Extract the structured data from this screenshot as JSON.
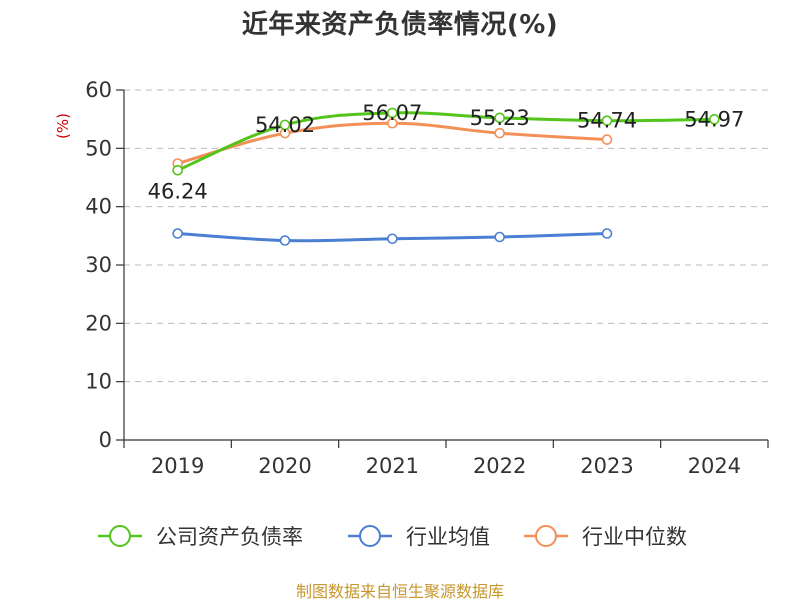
{
  "title": "近年来资产负债率情况(%)",
  "footer": "制图数据来自恒生聚源数据库",
  "chart_data": {
    "type": "line",
    "title": "近年来资产负债率情况(%)",
    "ylabel": "(%)",
    "xlabel": "",
    "categories": [
      "2019",
      "2020",
      "2021",
      "2022",
      "2023",
      "2024"
    ],
    "ylim": [
      0,
      60
    ],
    "yticks": [
      0,
      10,
      20,
      30,
      40,
      50,
      60
    ],
    "grid": true,
    "legend_position": "bottom",
    "series": [
      {
        "name": "公司资产负债率",
        "color": "#52c41a",
        "values": [
          46.24,
          54.02,
          56.07,
          55.23,
          54.74,
          54.97
        ],
        "labels": [
          "46.24",
          "54.02",
          "56.07",
          "55.23",
          "54.74",
          "54.97"
        ]
      },
      {
        "name": "行业均值",
        "color": "#4a7fd4",
        "values": [
          35.4,
          34.2,
          34.5,
          34.8,
          35.4,
          null
        ]
      },
      {
        "name": "行业中位数",
        "color": "#f39057",
        "values": [
          47.4,
          52.6,
          54.3,
          52.6,
          51.5,
          null
        ]
      }
    ]
  }
}
